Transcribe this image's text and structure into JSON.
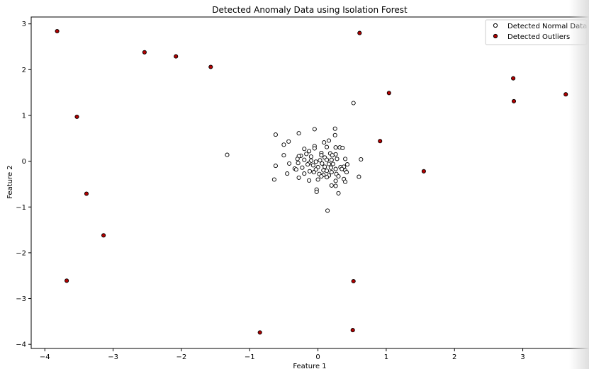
{
  "chart_data": {
    "type": "scatter",
    "title": "Detected Anomaly Data using Isolation Forest",
    "xlabel": "Feature 1",
    "ylabel": "Feature 2",
    "xlim": [
      -4.2,
      3.97
    ],
    "ylim": [
      -4.09,
      3.15
    ],
    "xticks": [
      -4,
      -3,
      -2,
      -1,
      0,
      1,
      2,
      3
    ],
    "yticks": [
      -4,
      -3,
      -2,
      -1,
      0,
      1,
      2,
      3
    ],
    "tick_labels_x": [
      "−4",
      "−3",
      "−2",
      "−1",
      "0",
      "1",
      "2",
      "3"
    ],
    "tick_labels_y": [
      "−4",
      "−3",
      "−2",
      "−1",
      "0",
      "1",
      "2",
      "3"
    ],
    "grid": false,
    "legend": "top-right",
    "series": [
      {
        "name": "Detected Normal Data",
        "color": "#ffffff",
        "edge": "#000000",
        "points": [
          [
            -0.62,
            0.58
          ],
          [
            -0.28,
            0.61
          ],
          [
            -0.05,
            0.7
          ],
          [
            0.25,
            0.71
          ],
          [
            0.25,
            0.57
          ],
          [
            -0.5,
            0.36
          ],
          [
            -0.43,
            0.43
          ],
          [
            0.09,
            0.41
          ],
          [
            0.16,
            0.45
          ],
          [
            0.13,
            0.31
          ],
          [
            0.26,
            0.3
          ],
          [
            0.32,
            0.3
          ],
          [
            0.36,
            0.29
          ],
          [
            -0.05,
            0.33
          ],
          [
            -0.05,
            0.28
          ],
          [
            -0.2,
            0.27
          ],
          [
            -0.13,
            0.22
          ],
          [
            0.05,
            0.18
          ],
          [
            -0.5,
            0.13
          ],
          [
            -0.25,
            0.12
          ],
          [
            -0.17,
            0.16
          ],
          [
            -0.28,
            0.11
          ],
          [
            -0.1,
            0.1
          ],
          [
            0.05,
            0.13
          ],
          [
            0.18,
            0.17
          ],
          [
            0.26,
            0.15
          ],
          [
            0.21,
            0.13
          ],
          [
            0.1,
            0.08
          ],
          [
            0.13,
            0.03
          ],
          [
            0.2,
            0.03
          ],
          [
            0.28,
            0.05
          ],
          [
            0.4,
            0.05
          ],
          [
            -0.3,
            0.05
          ],
          [
            -0.2,
            0.03
          ],
          [
            -0.1,
            0.01
          ],
          [
            0.03,
            0.02
          ],
          [
            -0.13,
            -0.04
          ],
          [
            -0.03,
            -0.01
          ],
          [
            0.06,
            -0.05
          ],
          [
            0.16,
            -0.06
          ],
          [
            0.22,
            -0.06
          ],
          [
            0.33,
            -0.13
          ],
          [
            0.38,
            -0.12
          ],
          [
            0.43,
            -0.07
          ],
          [
            -0.42,
            -0.05
          ],
          [
            -0.29,
            -0.04
          ],
          [
            -0.15,
            -0.07
          ],
          [
            -0.07,
            -0.09
          ],
          [
            0.0,
            -0.13
          ],
          [
            0.1,
            -0.12
          ],
          [
            0.19,
            -0.14
          ],
          [
            0.26,
            -0.17
          ],
          [
            0.35,
            -0.17
          ],
          [
            0.4,
            -0.2
          ],
          [
            -0.62,
            -0.1
          ],
          [
            -0.34,
            -0.16
          ],
          [
            -0.32,
            -0.18
          ],
          [
            -0.23,
            -0.14
          ],
          [
            -0.03,
            -0.18
          ],
          [
            0.08,
            -0.2
          ],
          [
            0.13,
            -0.21
          ],
          [
            0.2,
            -0.24
          ],
          [
            0.42,
            -0.24
          ],
          [
            -0.45,
            -0.27
          ],
          [
            -0.2,
            -0.27
          ],
          [
            -0.12,
            -0.22
          ],
          [
            -0.06,
            -0.24
          ],
          [
            0.02,
            -0.28
          ],
          [
            0.08,
            -0.3
          ],
          [
            0.16,
            -0.31
          ],
          [
            0.27,
            -0.28
          ],
          [
            0.3,
            -0.33
          ],
          [
            0.6,
            -0.34
          ],
          [
            -0.28,
            -0.36
          ],
          [
            0.05,
            -0.33
          ],
          [
            0.13,
            -0.35
          ],
          [
            0.38,
            -0.39
          ],
          [
            0.4,
            -0.45
          ],
          [
            -0.64,
            -0.4
          ],
          [
            -0.13,
            -0.42
          ],
          [
            0.0,
            -0.4
          ],
          [
            0.26,
            -0.43
          ],
          [
            0.2,
            -0.53
          ],
          [
            0.26,
            -0.54
          ],
          [
            -0.02,
            -0.62
          ],
          [
            -0.02,
            -0.67
          ],
          [
            0.3,
            -0.7
          ],
          [
            0.14,
            -1.08
          ],
          [
            -1.33,
            0.14
          ],
          [
            0.52,
            1.27
          ],
          [
            0.63,
            0.04
          ]
        ]
      },
      {
        "name": "Detected Outliers",
        "color": "#b30000",
        "edge": "#000000",
        "points": [
          [
            -3.82,
            2.84
          ],
          [
            -2.54,
            2.38
          ],
          [
            -2.08,
            2.29
          ],
          [
            -1.57,
            2.06
          ],
          [
            0.61,
            2.8
          ],
          [
            2.86,
            1.81
          ],
          [
            3.63,
            1.46
          ],
          [
            2.87,
            1.31
          ],
          [
            1.04,
            1.49
          ],
          [
            -3.53,
            0.97
          ],
          [
            0.91,
            0.44
          ],
          [
            1.55,
            -0.22
          ],
          [
            -3.39,
            -0.71
          ],
          [
            -3.14,
            -1.62
          ],
          [
            -3.68,
            -2.61
          ],
          [
            0.52,
            -2.62
          ],
          [
            -0.85,
            -3.74
          ],
          [
            0.51,
            -3.69
          ]
        ]
      }
    ]
  }
}
